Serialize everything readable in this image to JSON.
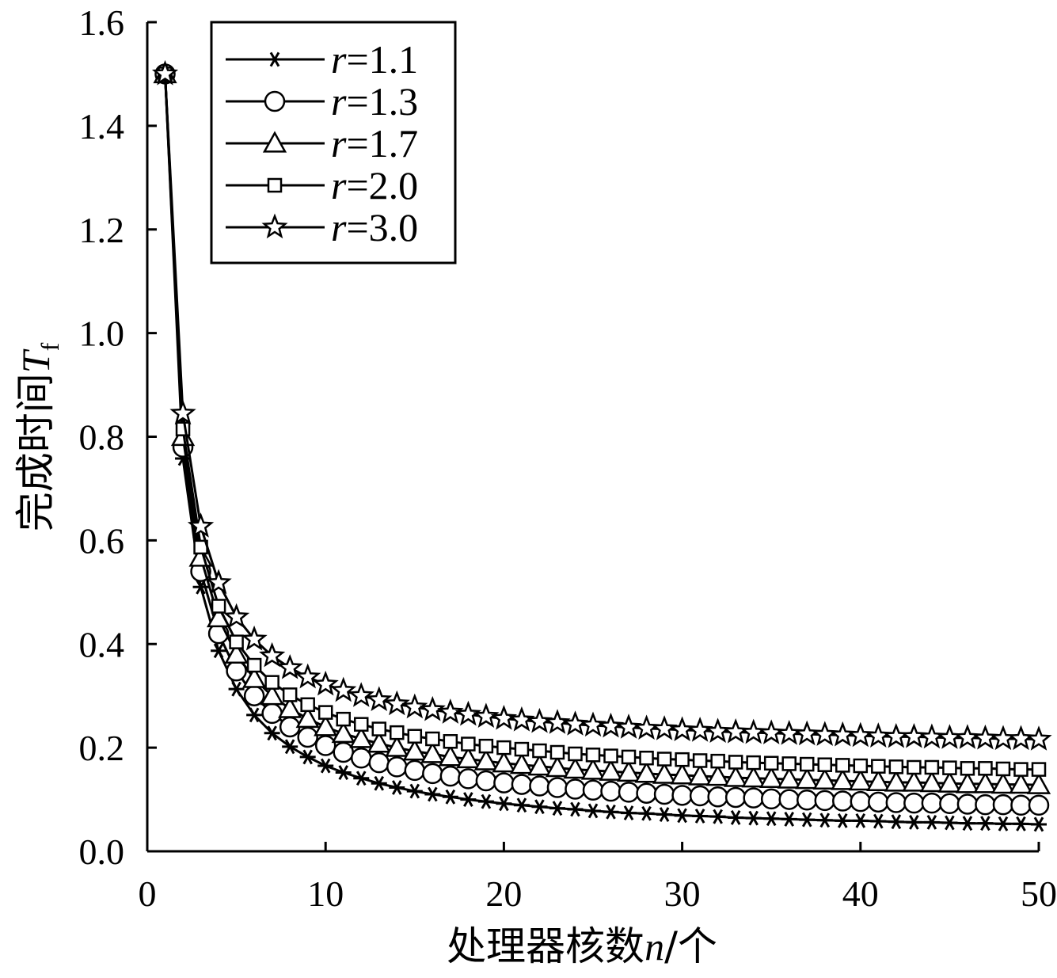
{
  "chart_data": {
    "type": "line",
    "xlabel": {
      "prefix": "处理器核数",
      "var": "n",
      "suffix": "/个"
    },
    "ylabel": {
      "prefix": "完成时间",
      "var": "T",
      "sub": "f"
    },
    "xlim": [
      0,
      50
    ],
    "ylim": [
      0,
      1.6
    ],
    "x_ticks": [
      "0",
      "10",
      "20",
      "30",
      "40",
      "50"
    ],
    "y_ticks": [
      "0.0",
      "0.2",
      "0.4",
      "0.6",
      "0.8",
      "1.0",
      "1.2",
      "1.4",
      "1.6"
    ],
    "grid": false,
    "legend_position": "top-left",
    "x": [
      1,
      2,
      3,
      4,
      5,
      6,
      7,
      8,
      9,
      10,
      11,
      12,
      13,
      14,
      15,
      16,
      17,
      18,
      19,
      20,
      21,
      22,
      23,
      24,
      25,
      26,
      27,
      28,
      29,
      30,
      31,
      32,
      33,
      34,
      35,
      36,
      37,
      38,
      39,
      40,
      41,
      42,
      43,
      44,
      45,
      46,
      47,
      48,
      49,
      50
    ],
    "series": [
      {
        "name": "r=1.1",
        "var": "r",
        "value": "=1.1",
        "marker": "asterisk",
        "values": [
          1.5,
          0.758,
          0.51,
          0.387,
          0.313,
          0.263,
          0.228,
          0.202,
          0.182,
          0.165,
          0.152,
          0.141,
          0.131,
          0.123,
          0.116,
          0.11,
          0.105,
          0.1,
          0.096,
          0.092,
          0.089,
          0.086,
          0.083,
          0.081,
          0.078,
          0.076,
          0.074,
          0.073,
          0.071,
          0.069,
          0.068,
          0.067,
          0.065,
          0.064,
          0.063,
          0.062,
          0.061,
          0.06,
          0.059,
          0.059,
          0.058,
          0.057,
          0.056,
          0.056,
          0.055,
          0.054,
          0.054,
          0.053,
          0.053,
          0.052
        ]
      },
      {
        "name": "r=1.3",
        "var": "r",
        "value": "=1.3",
        "marker": "circle",
        "values": [
          1.5,
          0.78,
          0.54,
          0.42,
          0.348,
          0.3,
          0.266,
          0.24,
          0.22,
          0.204,
          0.191,
          0.18,
          0.171,
          0.163,
          0.156,
          0.15,
          0.145,
          0.14,
          0.136,
          0.132,
          0.129,
          0.126,
          0.123,
          0.12,
          0.118,
          0.116,
          0.114,
          0.112,
          0.11,
          0.108,
          0.107,
          0.105,
          0.104,
          0.103,
          0.101,
          0.1,
          0.099,
          0.098,
          0.097,
          0.096,
          0.095,
          0.094,
          0.093,
          0.093,
          0.092,
          0.091,
          0.09,
          0.09,
          0.089,
          0.089
        ]
      },
      {
        "name": "r=1.7",
        "var": "r",
        "value": "=1.7",
        "marker": "triangle",
        "values": [
          1.5,
          0.8,
          0.567,
          0.45,
          0.38,
          0.333,
          0.3,
          0.275,
          0.256,
          0.24,
          0.227,
          0.217,
          0.208,
          0.2,
          0.193,
          0.188,
          0.182,
          0.178,
          0.174,
          0.17,
          0.167,
          0.164,
          0.161,
          0.158,
          0.156,
          0.154,
          0.152,
          0.15,
          0.148,
          0.147,
          0.145,
          0.144,
          0.142,
          0.141,
          0.14,
          0.139,
          0.138,
          0.137,
          0.136,
          0.135,
          0.134,
          0.133,
          0.133,
          0.132,
          0.131,
          0.13,
          0.13,
          0.129,
          0.129,
          0.128
        ]
      },
      {
        "name": "r=2.0",
        "var": "r",
        "value": "=2.0",
        "marker": "square",
        "values": [
          1.5,
          0.815,
          0.587,
          0.473,
          0.404,
          0.359,
          0.326,
          0.302,
          0.283,
          0.268,
          0.255,
          0.245,
          0.236,
          0.229,
          0.222,
          0.217,
          0.212,
          0.207,
          0.203,
          0.2,
          0.197,
          0.194,
          0.191,
          0.188,
          0.186,
          0.184,
          0.182,
          0.18,
          0.178,
          0.177,
          0.175,
          0.174,
          0.172,
          0.171,
          0.17,
          0.169,
          0.168,
          0.167,
          0.166,
          0.165,
          0.164,
          0.163,
          0.162,
          0.162,
          0.161,
          0.16,
          0.16,
          0.159,
          0.158,
          0.158
        ]
      },
      {
        "name": "r=3.0",
        "var": "r",
        "value": "=3.0",
        "marker": "star",
        "values": [
          1.5,
          0.845,
          0.627,
          0.518,
          0.452,
          0.409,
          0.377,
          0.354,
          0.336,
          0.322,
          0.31,
          0.3,
          0.292,
          0.284,
          0.278,
          0.273,
          0.268,
          0.264,
          0.26,
          0.256,
          0.253,
          0.25,
          0.248,
          0.245,
          0.243,
          0.241,
          0.239,
          0.237,
          0.236,
          0.234,
          0.233,
          0.231,
          0.23,
          0.229,
          0.228,
          0.227,
          0.226,
          0.225,
          0.224,
          0.223,
          0.222,
          0.221,
          0.221,
          0.22,
          0.219,
          0.219,
          0.218,
          0.217,
          0.217,
          0.216
        ]
      }
    ]
  }
}
